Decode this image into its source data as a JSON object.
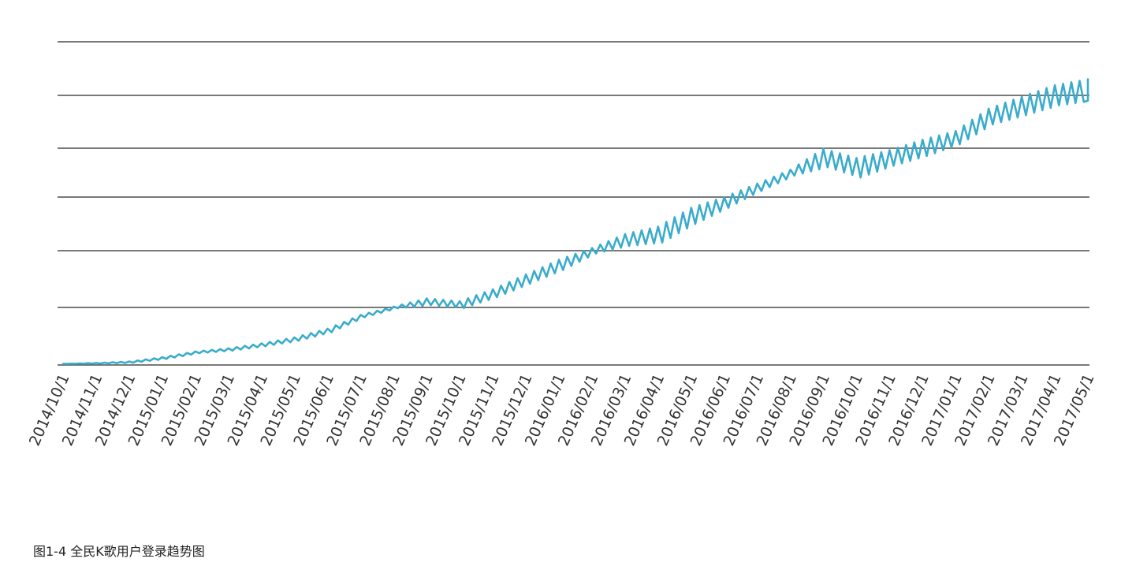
{
  "caption": "图1-4 全民K歌用户登录趋势图",
  "colors": {
    "series": "#3aaccb",
    "grid": "#4d4d4d"
  },
  "chart_data": {
    "type": "line",
    "title": "",
    "xlabel": "",
    "ylabel": "",
    "y_axis_labels_shown": false,
    "grid": "horizontal",
    "ylim": [
      0,
      6
    ],
    "categories": [
      "2014/10/1",
      "2014/11/1",
      "2014/12/1",
      "2015/01/1",
      "2015/02/1",
      "2015/03/1",
      "2015/04/1",
      "2015/05/1",
      "2015/06/1",
      "2015/07/1",
      "2015/08/1",
      "2015/09/1",
      "2015/10/1",
      "2015/11/1",
      "2015/12/1",
      "2016/01/1",
      "2016/02/1",
      "2016/03/1",
      "2016/04/1",
      "2016/05/1",
      "2016/06/1",
      "2016/07/1",
      "2016/08/1",
      "2016/09/1",
      "2016/10/1",
      "2016/11/1",
      "2016/12/1",
      "2017/01/1",
      "2017/02/1",
      "2017/03/1",
      "2017/04/1",
      "2017/05/1"
    ],
    "series": [
      {
        "values": [
          0.02,
          0.03,
          0.05,
          0.12,
          0.22,
          0.27,
          0.35,
          0.45,
          0.6,
          0.85,
          1.0,
          1.1,
          1.05,
          1.25,
          1.5,
          1.75,
          2.0,
          2.2,
          2.3,
          2.65,
          2.9,
          3.2,
          3.5,
          3.8,
          3.6,
          3.8,
          4.0,
          4.2,
          4.6,
          4.8,
          5.0,
          5.1
        ],
        "amplitude": [
          0,
          0.01,
          0.02,
          0.03,
          0.03,
          0.04,
          0.05,
          0.06,
          0.06,
          0.04,
          0.03,
          0.12,
          0.12,
          0.14,
          0.16,
          0.18,
          0.1,
          0.22,
          0.3,
          0.3,
          0.2,
          0.15,
          0.12,
          0.38,
          0.4,
          0.32,
          0.32,
          0.25,
          0.3,
          0.35,
          0.38,
          0.4
        ]
      }
    ]
  }
}
